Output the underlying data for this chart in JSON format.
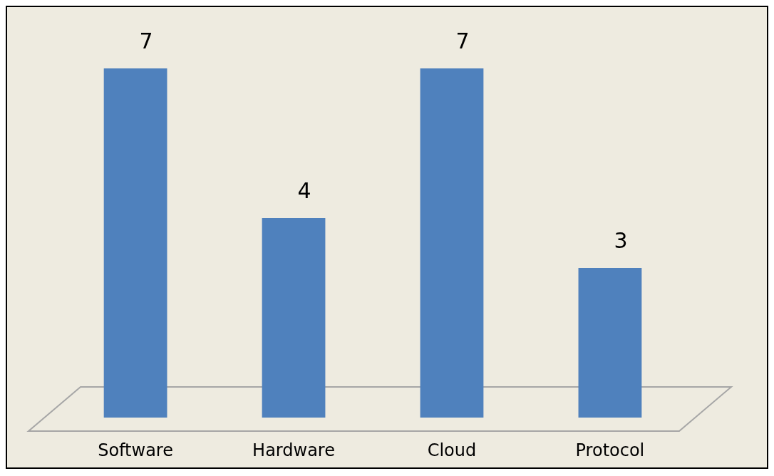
{
  "chart_data": {
    "type": "bar",
    "categories": [
      "Software",
      "Hardware",
      "Cloud",
      "Protocol"
    ],
    "values": [
      7,
      4,
      7,
      3
    ],
    "color": "#4f81bd",
    "data_labels": true
  }
}
